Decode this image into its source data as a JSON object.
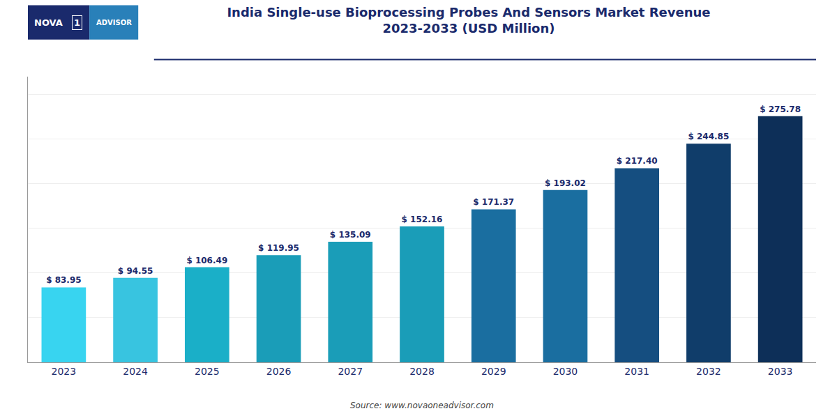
{
  "chart_data": {
    "type": "bar",
    "title": "India Single-use Bioprocessing Probes And Sensors Market Revenue",
    "subtitle": "2023-2033 (USD Million)",
    "annotations": [
      "Source: www.novaoneadvisor.com",
      "NOVA",
      "1",
      "ADVISOR"
    ],
    "categories": [
      "2023",
      "2024",
      "2025",
      "2026",
      "2027",
      "2028",
      "2029",
      "2030",
      "2031",
      "2032",
      "2033"
    ],
    "values": [
      83.95,
      94.55,
      106.49,
      119.95,
      135.09,
      152.16,
      171.37,
      193.02,
      217.4,
      244.85,
      275.78
    ],
    "value_labels": [
      "$ 83.95",
      "$ 94.55",
      "$ 106.49",
      "$ 119.95",
      "$ 135.09",
      "$ 152.16",
      "$ 171.37",
      "$ 193.02",
      "$ 217.40",
      "$ 244.85",
      "$ 275.78"
    ],
    "colors": [
      "#38D4F0",
      "#38C4E0",
      "#1AAFC8",
      "#1A9DB8",
      "#1A9DB8",
      "#1A9DB8",
      "#1A6EA0",
      "#1A6EA0",
      "#154E80",
      "#103D6A",
      "#0D2F58"
    ],
    "ylim": [
      0,
      320
    ],
    "yticks": [
      0,
      50,
      100,
      150,
      200,
      250,
      300
    ],
    "grid": true,
    "data_labels": true,
    "tick_labels": "x"
  }
}
